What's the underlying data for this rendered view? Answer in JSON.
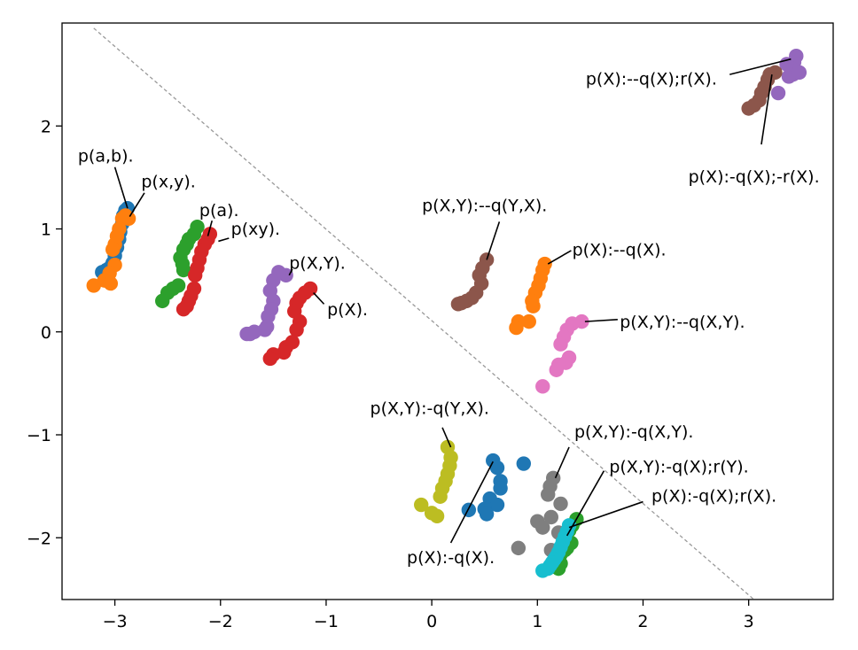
{
  "chart_data": {
    "type": "scatter",
    "title": "",
    "xlabel": "",
    "ylabel": "",
    "xlim": [
      -3.5,
      3.8
    ],
    "ylim": [
      -2.6,
      3.0
    ],
    "xticks": [
      -3,
      -2,
      -1,
      0,
      1,
      2,
      3
    ],
    "xtick_labels": [
      "−3",
      "−2",
      "−1",
      "0",
      "1",
      "2",
      "3"
    ],
    "yticks": [
      -2,
      -1,
      0,
      1,
      2
    ],
    "ytick_labels": [
      "−2",
      "−1",
      "0",
      "1",
      "2"
    ],
    "grid": false,
    "separator_line": {
      "x": [
        -3.2,
        3.05
      ],
      "y": [
        2.95,
        -2.6
      ],
      "style": "dashed",
      "color": "#999999"
    },
    "colors": {
      "blue": "#1f77b4",
      "orange": "#ff7f0e",
      "green": "#2ca02c",
      "red": "#d62728",
      "purple": "#9467bd",
      "brown": "#8c564b",
      "pink": "#e377c2",
      "gray": "#7f7f7f",
      "olive": "#bcbd22",
      "cyan": "#17becf"
    },
    "series": [
      {
        "name": "p(a,b).",
        "color": "#1f77b4",
        "x": [
          -2.88,
          -2.92,
          -2.93,
          -2.95,
          -2.96,
          -2.98,
          -3.0,
          -3.02,
          -3.05,
          -3.08,
          -3.12,
          -2.9
        ],
        "y": [
          1.2,
          1.13,
          1.05,
          0.97,
          0.9,
          0.82,
          0.74,
          0.67,
          0.62,
          0.6,
          0.58,
          1.18
        ]
      },
      {
        "name": "p(x,y).",
        "color": "#ff7f0e",
        "x": [
          -2.87,
          -2.9,
          -2.93,
          -2.96,
          -2.98,
          -3.0,
          -3.02,
          -3.0,
          -3.05,
          -3.1,
          -3.2,
          -3.04
        ],
        "y": [
          1.1,
          1.13,
          1.1,
          1.0,
          0.93,
          0.85,
          0.8,
          0.65,
          0.57,
          0.5,
          0.45,
          0.47
        ]
      },
      {
        "name": "p(a).",
        "color": "#2ca02c",
        "x": [
          -2.22,
          -2.25,
          -2.3,
          -2.32,
          -2.35,
          -2.38,
          -2.36,
          -2.35,
          -2.4,
          -2.45,
          -2.5,
          -2.55
        ],
        "y": [
          1.02,
          0.95,
          0.9,
          0.85,
          0.8,
          0.72,
          0.66,
          0.6,
          0.45,
          0.42,
          0.38,
          0.3
        ]
      },
      {
        "name": "p(xy).",
        "color": "#d62728",
        "x": [
          -2.1,
          -2.12,
          -2.15,
          -2.18,
          -2.2,
          -2.22,
          -2.24,
          -2.25,
          -2.28,
          -2.3,
          -2.32,
          -2.35
        ],
        "y": [
          0.95,
          0.9,
          0.85,
          0.78,
          0.7,
          0.62,
          0.55,
          0.42,
          0.35,
          0.3,
          0.25,
          0.22
        ]
      },
      {
        "name": "p(X,Y).",
        "color": "#9467bd",
        "x": [
          -1.38,
          -1.45,
          -1.5,
          -1.53,
          -1.5,
          -1.52,
          -1.55,
          -1.56,
          -1.58,
          -1.68,
          -1.72,
          -1.75
        ],
        "y": [
          0.55,
          0.58,
          0.5,
          0.4,
          0.3,
          0.22,
          0.15,
          0.05,
          0.02,
          0.0,
          -0.02,
          -0.02
        ]
      },
      {
        "name": "p(X).",
        "color": "#d62728",
        "x": [
          -1.15,
          -1.2,
          -1.25,
          -1.28,
          -1.3,
          -1.25,
          -1.28,
          -1.32,
          -1.38,
          -1.4,
          -1.5,
          -1.53
        ],
        "y": [
          0.42,
          0.38,
          0.33,
          0.28,
          0.2,
          0.1,
          0.02,
          -0.1,
          -0.15,
          -0.2,
          -0.22,
          -0.26
        ]
      },
      {
        "name": "p(X,Y):--q(Y,X).",
        "color": "#8c564b",
        "x": [
          0.52,
          0.48,
          0.45,
          0.47,
          0.42,
          0.38,
          0.33,
          0.28,
          0.25
        ],
        "y": [
          0.7,
          0.62,
          0.55,
          0.47,
          0.38,
          0.33,
          0.3,
          0.28,
          0.27
        ]
      },
      {
        "name": "p(X):--q(X).",
        "color": "#ff7f0e",
        "x": [
          1.07,
          1.05,
          1.03,
          1.01,
          0.98,
          0.95,
          0.96,
          0.92,
          0.82,
          0.8
        ],
        "y": [
          0.66,
          0.6,
          0.52,
          0.45,
          0.38,
          0.3,
          0.25,
          0.1,
          0.1,
          0.04
        ]
      },
      {
        "name": "p(X,Y):--q(X,Y).",
        "color": "#e377c2",
        "x": [
          1.42,
          1.33,
          1.28,
          1.25,
          1.22,
          1.3,
          1.27,
          1.2,
          1.18,
          1.05
        ],
        "y": [
          0.1,
          0.08,
          0.02,
          -0.05,
          -0.12,
          -0.25,
          -0.3,
          -0.32,
          -0.37,
          -0.53
        ]
      },
      {
        "name": "p(X,Y):-q(Y,X).",
        "color": "#bcbd22",
        "x": [
          0.15,
          0.18,
          0.17,
          0.15,
          0.13,
          0.1,
          0.08,
          -0.1,
          0.0,
          0.05
        ],
        "y": [
          -1.12,
          -1.22,
          -1.3,
          -1.38,
          -1.45,
          -1.52,
          -1.6,
          -1.68,
          -1.76,
          -1.79
        ]
      },
      {
        "name": "p(X):-q(X).",
        "color": "#1f77b4",
        "x": [
          0.58,
          0.62,
          0.65,
          0.65,
          0.55,
          0.62,
          0.5,
          0.35,
          0.52,
          0.87
        ],
        "y": [
          -1.25,
          -1.32,
          -1.45,
          -1.52,
          -1.62,
          -1.68,
          -1.72,
          -1.73,
          -1.77,
          -1.28
        ]
      },
      {
        "name": "p(X,Y):-q(X,Y).",
        "color": "#7f7f7f",
        "x": [
          1.15,
          1.12,
          1.1,
          1.22,
          1.13,
          1.0,
          1.05,
          1.2,
          1.25,
          1.13,
          0.82
        ],
        "y": [
          -1.42,
          -1.5,
          -1.58,
          -1.67,
          -1.8,
          -1.84,
          -1.9,
          -1.95,
          -2.03,
          -2.12,
          -2.1
        ]
      },
      {
        "name": "p(X,Y):-q(X);r(Y).",
        "color": "#2ca02c",
        "x": [
          1.37,
          1.33,
          1.3,
          1.32,
          1.28,
          1.26,
          1.22,
          1.2,
          1.18,
          1.15,
          1.2,
          1.22
        ],
        "y": [
          -1.82,
          -1.88,
          -1.93,
          -2.05,
          -2.1,
          -2.12,
          -2.16,
          -2.2,
          -2.24,
          -2.28,
          -2.3,
          -2.25
        ]
      },
      {
        "name": "p(X):-q(X);r(X).",
        "color": "#17becf",
        "x": [
          1.3,
          1.28,
          1.26,
          1.24,
          1.22,
          1.2,
          1.18,
          1.16,
          1.14,
          1.12,
          1.1,
          1.05
        ],
        "y": [
          -1.88,
          -1.94,
          -1.99,
          -2.04,
          -2.09,
          -2.14,
          -2.18,
          -2.21,
          -2.24,
          -2.27,
          -2.3,
          -2.32
        ]
      },
      {
        "name": "p(X):--q(X);r(X).",
        "color": "#9467bd",
        "x": [
          3.45,
          3.43,
          3.4,
          3.42,
          3.38,
          3.48,
          3.36,
          3.28
        ],
        "y": [
          2.68,
          2.62,
          2.56,
          2.5,
          2.48,
          2.52,
          2.6,
          2.32
        ]
      },
      {
        "name": "p(X):-q(X);-r(X).",
        "color": "#8c564b",
        "x": [
          3.25,
          3.2,
          3.18,
          3.15,
          3.12,
          3.1,
          3.05,
          3.0
        ],
        "y": [
          2.52,
          2.5,
          2.45,
          2.38,
          2.32,
          2.25,
          2.2,
          2.17
        ]
      }
    ],
    "annotations": [
      {
        "text": "p(a,b).",
        "anchor": "left",
        "tx": -3.35,
        "ty": 1.7,
        "px": -2.88,
        "py": 1.2,
        "lx": -3.0,
        "ly": 1.6
      },
      {
        "text": "p(x,y).",
        "anchor": "left",
        "tx": -2.75,
        "ty": 1.45,
        "px": -2.86,
        "py": 1.12,
        "lx": -2.72,
        "ly": 1.35
      },
      {
        "text": "p(a).",
        "anchor": "left",
        "tx": -2.2,
        "ty": 1.17,
        "px": -2.12,
        "py": 0.93,
        "lx": -2.08,
        "ly": 1.08
      },
      {
        "text": "p(xy).",
        "anchor": "left",
        "tx": -1.9,
        "ty": 0.99,
        "px": -2.02,
        "py": 0.88,
        "lx": -1.92,
        "ly": 0.91
      },
      {
        "text": "p(X,Y).",
        "anchor": "left",
        "tx": -1.35,
        "ty": 0.66,
        "px": -1.35,
        "py": 0.55,
        "lx": -1.32,
        "ly": 0.61
      },
      {
        "text": "p(X).",
        "anchor": "left",
        "tx": -0.99,
        "ty": 0.21,
        "px": -1.12,
        "py": 0.38,
        "lx": -1.02,
        "ly": 0.27
      },
      {
        "text": "p(X,Y):--q(Y,X).",
        "anchor": "middle",
        "tx": 0.5,
        "ty": 1.22,
        "px": 0.52,
        "py": 0.7,
        "lx": 0.64,
        "ly": 1.07
      },
      {
        "text": "p(X):--q(X).",
        "anchor": "left",
        "tx": 1.33,
        "ty": 0.79,
        "px": 1.1,
        "py": 0.66,
        "lx": 1.32,
        "ly": 0.79
      },
      {
        "text": "p(X,Y):--q(X,Y).",
        "anchor": "left",
        "tx": 1.78,
        "ty": 0.09,
        "px": 1.45,
        "py": 0.1,
        "lx": 1.76,
        "ly": 0.12
      },
      {
        "text": "p(X,Y):-q(Y,X).",
        "anchor": "middle",
        "tx": -0.02,
        "ty": -0.75,
        "px": 0.18,
        "py": -1.12,
        "lx": 0.1,
        "ly": -0.93
      },
      {
        "text": "p(X):-q(X).",
        "anchor": "middle",
        "tx": 0.18,
        "ty": -2.2,
        "px": 0.58,
        "py": -1.26,
        "lx": 0.18,
        "ly": -2.05
      },
      {
        "text": "p(X,Y):-q(X,Y).",
        "anchor": "left",
        "tx": 1.35,
        "ty": -0.98,
        "px": 1.17,
        "py": -1.42,
        "lx": 1.3,
        "ly": -1.12
      },
      {
        "text": "p(X,Y):-q(X);r(Y).",
        "anchor": "left",
        "tx": 1.68,
        "ty": -1.32,
        "px": 1.28,
        "py": -1.98,
        "lx": 1.63,
        "ly": -1.35
      },
      {
        "text": "p(X):-q(X);r(X).",
        "anchor": "left",
        "tx": 2.08,
        "ty": -1.6,
        "px": 1.3,
        "py": -1.9,
        "lx": 2.0,
        "ly": -1.65
      },
      {
        "text": "p(X):--q(X);r(X).",
        "anchor": "end",
        "tx": 2.7,
        "ty": 2.45,
        "px": 3.4,
        "py": 2.65,
        "lx": 2.82,
        "ly": 2.5
      },
      {
        "text": "p(X):-q(X);-r(X).",
        "anchor": "middle",
        "tx": 3.05,
        "ty": 1.5,
        "px": 3.22,
        "py": 2.5,
        "lx": 3.12,
        "ly": 1.82
      }
    ]
  }
}
